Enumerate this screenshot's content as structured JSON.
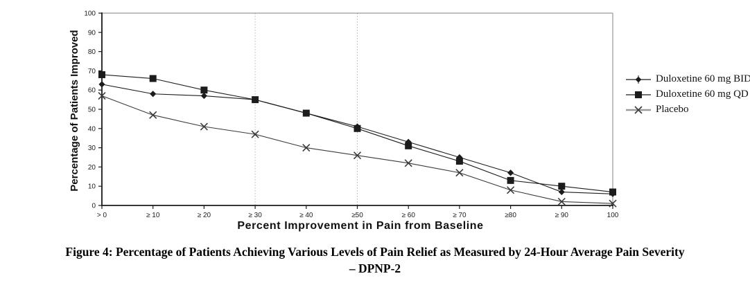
{
  "figure": {
    "caption_line1": "Figure 4: Percentage of Patients Achieving Various Levels of Pain Relief as Measured by 24-Hour Average Pain Severity",
    "caption_line2": "– DPNP-2"
  },
  "chart_data": {
    "type": "line",
    "title": "",
    "xlabel": "Percent Improvement in Pain from Baseline",
    "ylabel": "Percentage of Patients Improved",
    "x": [
      0,
      10,
      20,
      30,
      40,
      50,
      60,
      70,
      80,
      90,
      100
    ],
    "x_tick_labels": [
      "> 0",
      "≥ 10",
      "≥ 20",
      "≥ 30",
      "≥ 40",
      "≥50",
      "≥ 60",
      "≥ 70",
      "≥80",
      "≥ 90",
      "100"
    ],
    "xlim": [
      0,
      100
    ],
    "ylim": [
      0,
      100
    ],
    "y_ticks": [
      0,
      10,
      20,
      30,
      40,
      50,
      60,
      70,
      80,
      90,
      100
    ],
    "gridlines_x_dotted": [
      30,
      50
    ],
    "grid": "off",
    "legend_position": "right",
    "colors": {
      "series_dark": "#1c1c1c",
      "placebo_line": "#4a4a4a",
      "frame_gray": "#808080",
      "gridline_gray": "#b5b5b5"
    },
    "series": [
      {
        "name": "Duloxetine 60 mg BID",
        "marker": "diamond",
        "color": "#1c1c1c",
        "values": [
          63,
          58,
          57,
          55,
          48,
          41,
          33,
          25,
          17,
          7,
          6
        ]
      },
      {
        "name": "Duloxetine 60 mg QD",
        "marker": "square",
        "color": "#1c1c1c",
        "values": [
          68,
          66,
          60,
          55,
          48,
          40,
          31,
          23,
          13,
          10,
          7
        ]
      },
      {
        "name": "Placebo",
        "marker": "x",
        "color": "#3a3a3a",
        "values": [
          57,
          47,
          41,
          37,
          30,
          26,
          22,
          17,
          8,
          2,
          1
        ]
      }
    ]
  }
}
